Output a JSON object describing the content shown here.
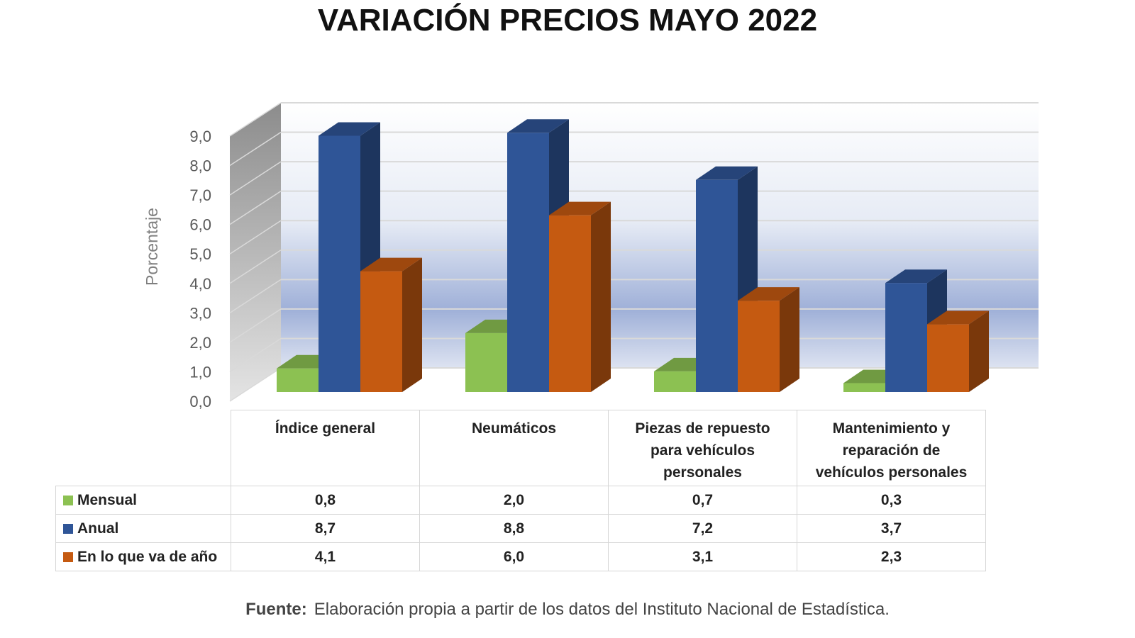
{
  "chart_data": {
    "type": "bar",
    "title": "VARIACIÓN PRECIOS MAYO 2022",
    "ylabel": "Porcentaje",
    "ylim": [
      0,
      9
    ],
    "yticks": [
      "0,0",
      "1,0",
      "2,0",
      "3,0",
      "4,0",
      "5,0",
      "6,0",
      "7,0",
      "8,0",
      "9,0"
    ],
    "categories": [
      "Índice general",
      "Neumáticos",
      "Piezas de repuesto para vehículos personales",
      "Mantenimiento y reparación de vehículos personales"
    ],
    "series": [
      {
        "name": "Mensual",
        "color": "#8cc152",
        "values": [
          0.8,
          2.0,
          0.7,
          0.3
        ],
        "labels": [
          "0,8",
          "2,0",
          "0,7",
          "0,3"
        ]
      },
      {
        "name": "Anual",
        "color": "#2f5597",
        "values": [
          8.7,
          8.8,
          7.2,
          3.7
        ],
        "labels": [
          "8,7",
          "8,8",
          "7,2",
          "3,7"
        ]
      },
      {
        "name": "En lo que va de año",
        "color": "#c55a11",
        "values": [
          4.1,
          6.0,
          3.1,
          2.3
        ],
        "labels": [
          "4,1",
          "6,0",
          "3,1",
          "2,3"
        ]
      }
    ],
    "grid": true,
    "legend": "data-table"
  },
  "source": {
    "label": "Fuente:",
    "text": "Elaboración propia a partir de los datos del Instituto Nacional de Estadística."
  }
}
